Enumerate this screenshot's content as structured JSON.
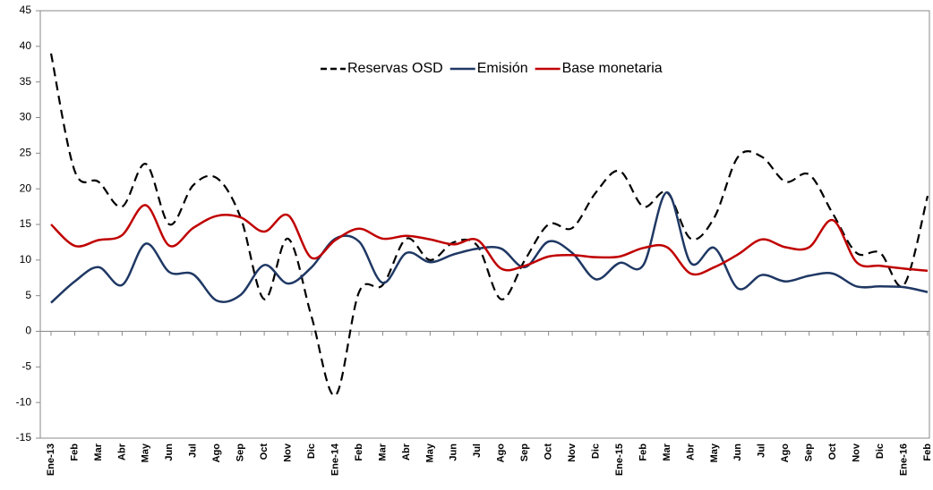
{
  "chart_data": {
    "type": "line",
    "categories": [
      "Ene-13",
      "Feb",
      "Mar",
      "Abr",
      "May",
      "Jun",
      "Jul",
      "Ago",
      "Sep",
      "Oct",
      "Nov",
      "Dic",
      "Ene-14",
      "Feb",
      "Mar",
      "Abr",
      "May",
      "Jun",
      "Jul",
      "Ago",
      "Sep",
      "Oct",
      "Nov",
      "Dic",
      "Ene-15",
      "Feb",
      "Mar",
      "Abr",
      "May",
      "Jun",
      "Jul",
      "Ago",
      "Sep",
      "Oct",
      "Nov",
      "Dic",
      "Ene-16",
      "Feb"
    ],
    "series": [
      {
        "name": "Reservas OSD",
        "color": "#000000",
        "dash": true,
        "values": [
          39,
          22.5,
          21,
          17.5,
          23.5,
          15,
          20.5,
          21.5,
          16,
          4.5,
          13,
          2,
          -9,
          5.5,
          6.5,
          13,
          10,
          12.5,
          12,
          4.5,
          10,
          15,
          14.5,
          19.5,
          22.5,
          17.5,
          19.5,
          13,
          16,
          24.5,
          24.5,
          21,
          22,
          16.5,
          11,
          11,
          6.5,
          19
        ]
      },
      {
        "name": "Emisión",
        "color": "#1f3864",
        "values": [
          4,
          7,
          9,
          6.5,
          12.3,
          8.3,
          8,
          4.3,
          5.1,
          9.3,
          6.7,
          9,
          13,
          12.6,
          6.8,
          11,
          9.7,
          10.8,
          11.6,
          11.6,
          9,
          12.6,
          11,
          7.3,
          9.6,
          9.3,
          19.5,
          9.6,
          11.7,
          6,
          7.9,
          7,
          7.8,
          8.1,
          6.3,
          6.3,
          6.2,
          5.5
        ]
      },
      {
        "name": "Base monetaria",
        "color": "#c00000",
        "values": [
          15,
          12,
          12.8,
          13.5,
          17.7,
          12,
          14.5,
          16.2,
          16,
          14,
          16.3,
          10.3,
          12.8,
          14.4,
          13,
          13.4,
          12.9,
          12.2,
          12.8,
          8.8,
          9.2,
          10.5,
          10.7,
          10.4,
          10.5,
          11.7,
          11.8,
          8.1,
          9,
          10.8,
          12.9,
          11.8,
          11.8,
          15.6,
          9.7,
          9.2,
          8.8,
          8.5
        ]
      }
    ],
    "ylim": [
      -15,
      45
    ],
    "yticks": [
      -15,
      -10,
      -5,
      0,
      5,
      10,
      15,
      20,
      25,
      30,
      35,
      40,
      45
    ],
    "legend": "top",
    "smooth": true
  }
}
